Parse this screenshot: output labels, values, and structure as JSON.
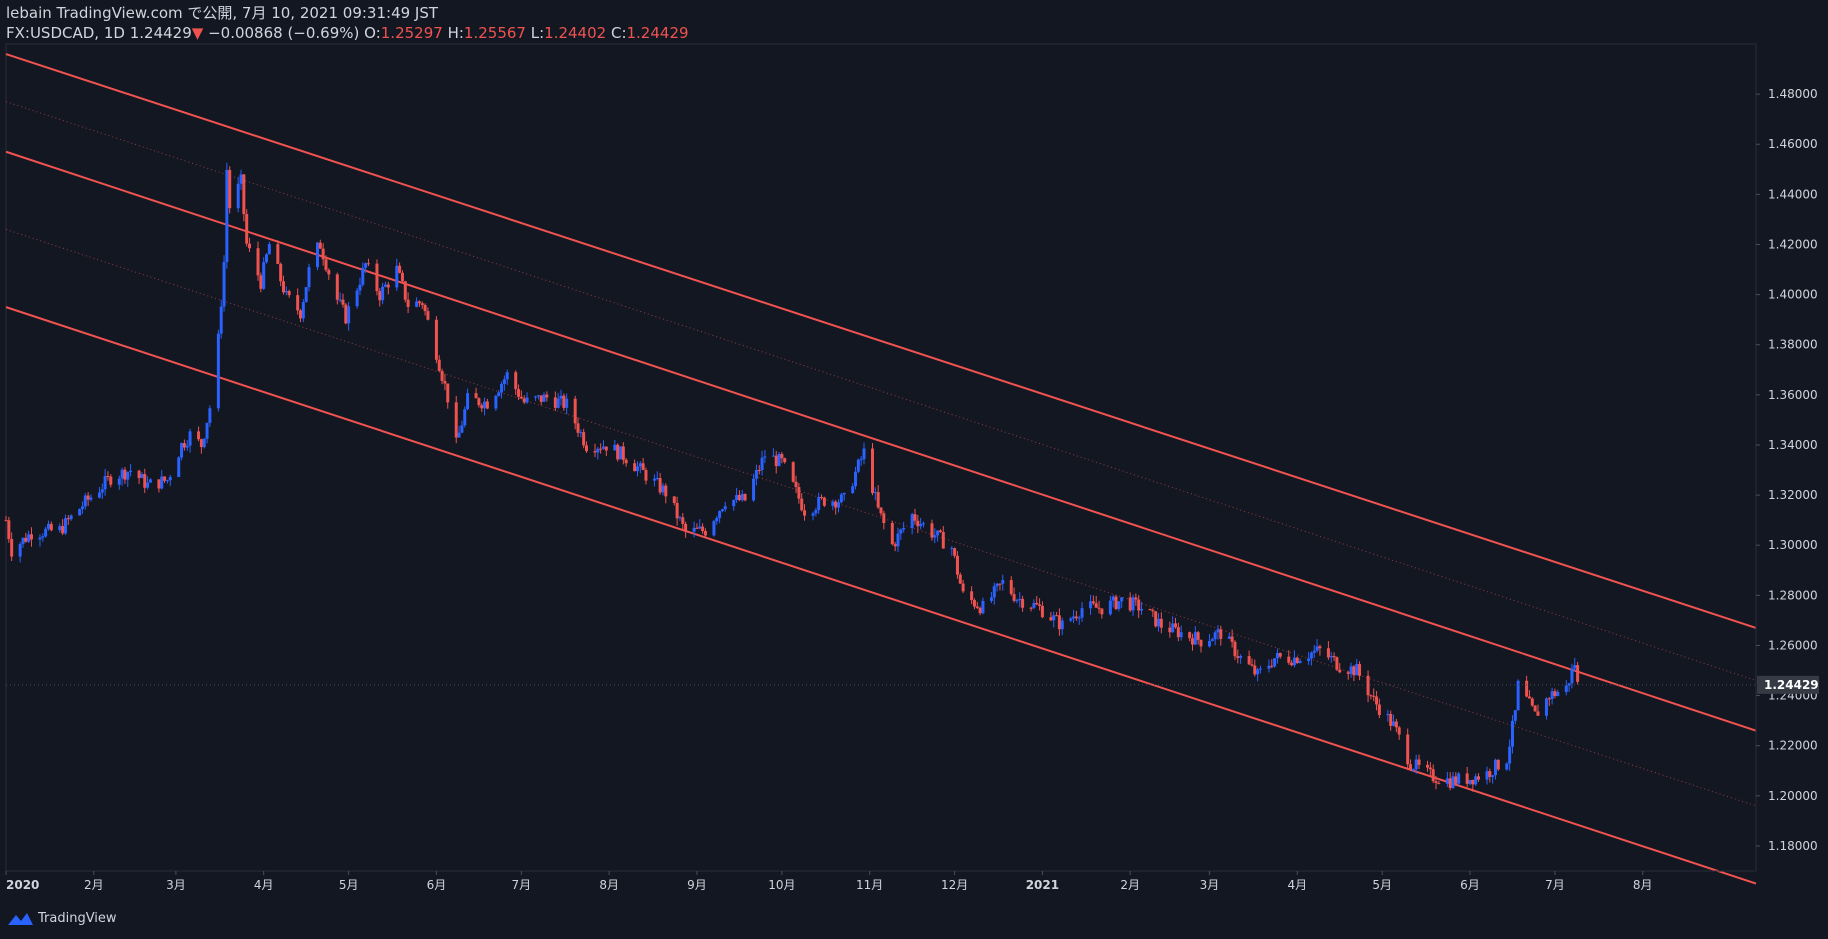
{
  "header": {
    "published": "lebain TradingView.com で公開, 7月 10, 2021 09:31:49 JST",
    "symbol": "FX:USDCAD, 1D",
    "last": "1.24429",
    "arrow": "▼",
    "change": "−0.00868 (−0.69%)",
    "o_label": "O:",
    "o_value": "1.25297",
    "h_label": "H:",
    "h_value": "1.25567",
    "l_label": "L:",
    "l_value": "1.24402",
    "c_label": "C:",
    "c_value": "1.24429"
  },
  "footer": {
    "brand": "TradingView",
    "logo_icon": "tradingview-cloud-icon"
  },
  "colors": {
    "background": "#131722",
    "up": "#2962ff",
    "down": "#ef5350",
    "channel": "#f05350",
    "text": "#d1d4dc",
    "last_price_bg": "#363a45"
  },
  "chart_data": {
    "type": "candlestick",
    "symbol": "FX:USDCAD",
    "interval": "1D",
    "ylim": [
      1.17,
      1.5
    ],
    "y_ticks": [
      "1.18000",
      "1.20000",
      "1.22000",
      "1.24000",
      "1.26000",
      "1.28000",
      "1.30000",
      "1.32000",
      "1.34000",
      "1.36000",
      "1.38000",
      "1.40000",
      "1.42000",
      "1.44000",
      "1.46000",
      "1.48000"
    ],
    "x_range": [
      "2020-01-01",
      "2021-09-10"
    ],
    "x_ticks": [
      {
        "date": "2020-01-01",
        "label": "2020",
        "bold": true
      },
      {
        "date": "2020-02-01",
        "label": "2月"
      },
      {
        "date": "2020-03-01",
        "label": "3月"
      },
      {
        "date": "2020-04-01",
        "label": "4月"
      },
      {
        "date": "2020-05-01",
        "label": "5月"
      },
      {
        "date": "2020-06-01",
        "label": "6月"
      },
      {
        "date": "2020-07-01",
        "label": "7月"
      },
      {
        "date": "2020-08-01",
        "label": "8月"
      },
      {
        "date": "2020-09-01",
        "label": "9月"
      },
      {
        "date": "2020-10-01",
        "label": "10月"
      },
      {
        "date": "2020-11-01",
        "label": "11月"
      },
      {
        "date": "2020-12-01",
        "label": "12月"
      },
      {
        "date": "2021-01-01",
        "label": "2021",
        "bold": true
      },
      {
        "date": "2021-02-01",
        "label": "2月"
      },
      {
        "date": "2021-03-01",
        "label": "3月"
      },
      {
        "date": "2021-04-01",
        "label": "4月"
      },
      {
        "date": "2021-05-01",
        "label": "5月"
      },
      {
        "date": "2021-06-01",
        "label": "6月"
      },
      {
        "date": "2021-07-01",
        "label": "7月"
      },
      {
        "date": "2021-08-01",
        "label": "8月"
      }
    ],
    "last_price": {
      "value": 1.24429,
      "label": "1.24429"
    },
    "path_points": [
      {
        "date": "2020-01-01",
        "close": 1.31
      },
      {
        "date": "2020-01-03",
        "close": 1.298
      },
      {
        "date": "2020-01-10",
        "close": 1.305
      },
      {
        "date": "2020-01-20",
        "close": 1.306
      },
      {
        "date": "2020-01-28",
        "close": 1.316
      },
      {
        "date": "2020-02-07",
        "close": 1.327
      },
      {
        "date": "2020-02-14",
        "close": 1.33
      },
      {
        "date": "2020-02-20",
        "close": 1.324
      },
      {
        "date": "2020-02-27",
        "close": 1.326
      },
      {
        "date": "2020-03-03",
        "close": 1.34
      },
      {
        "date": "2020-03-06",
        "close": 1.344
      },
      {
        "date": "2020-03-10",
        "close": 1.34
      },
      {
        "date": "2020-03-13",
        "close": 1.355
      },
      {
        "date": "2020-03-16",
        "close": 1.382
      },
      {
        "date": "2020-03-18",
        "close": 1.413
      },
      {
        "date": "2020-03-19",
        "close": 1.45
      },
      {
        "date": "2020-03-20",
        "close": 1.435
      },
      {
        "date": "2020-03-24",
        "close": 1.445
      },
      {
        "date": "2020-03-26",
        "close": 1.42
      },
      {
        "date": "2020-03-31",
        "close": 1.405
      },
      {
        "date": "2020-04-03",
        "close": 1.42
      },
      {
        "date": "2020-04-09",
        "close": 1.399
      },
      {
        "date": "2020-04-14",
        "close": 1.393
      },
      {
        "date": "2020-04-18",
        "close": 1.415
      },
      {
        "date": "2020-04-21",
        "close": 1.42
      },
      {
        "date": "2020-04-27",
        "close": 1.398
      },
      {
        "date": "2020-04-30",
        "close": 1.391
      },
      {
        "date": "2020-05-07",
        "close": 1.412
      },
      {
        "date": "2020-05-12",
        "close": 1.4
      },
      {
        "date": "2020-05-18",
        "close": 1.41
      },
      {
        "date": "2020-05-22",
        "close": 1.396
      },
      {
        "date": "2020-05-27",
        "close": 1.397
      },
      {
        "date": "2020-06-01",
        "close": 1.377
      },
      {
        "date": "2020-06-05",
        "close": 1.359
      },
      {
        "date": "2020-06-08",
        "close": 1.34
      },
      {
        "date": "2020-06-12",
        "close": 1.358
      },
      {
        "date": "2020-06-19",
        "close": 1.357
      },
      {
        "date": "2020-06-26",
        "close": 1.368
      },
      {
        "date": "2020-07-02",
        "close": 1.357
      },
      {
        "date": "2020-07-10",
        "close": 1.359
      },
      {
        "date": "2020-07-17",
        "close": 1.356
      },
      {
        "date": "2020-07-24",
        "close": 1.34
      },
      {
        "date": "2020-07-31",
        "close": 1.34
      },
      {
        "date": "2020-08-07",
        "close": 1.335
      },
      {
        "date": "2020-08-14",
        "close": 1.328
      },
      {
        "date": "2020-08-21",
        "close": 1.321
      },
      {
        "date": "2020-08-28",
        "close": 1.305
      },
      {
        "date": "2020-09-04",
        "close": 1.306
      },
      {
        "date": "2020-09-11",
        "close": 1.318
      },
      {
        "date": "2020-09-18",
        "close": 1.318
      },
      {
        "date": "2020-09-25",
        "close": 1.336
      },
      {
        "date": "2020-10-01",
        "close": 1.333
      },
      {
        "date": "2020-10-09",
        "close": 1.314
      },
      {
        "date": "2020-10-16",
        "close": 1.318
      },
      {
        "date": "2020-10-23",
        "close": 1.318
      },
      {
        "date": "2020-10-30",
        "close": 1.337
      },
      {
        "date": "2020-11-04",
        "close": 1.314
      },
      {
        "date": "2020-11-09",
        "close": 1.3
      },
      {
        "date": "2020-11-16",
        "close": 1.312
      },
      {
        "date": "2020-11-23",
        "close": 1.305
      },
      {
        "date": "2020-11-30",
        "close": 1.299
      },
      {
        "date": "2020-12-04",
        "close": 1.28
      },
      {
        "date": "2020-12-11",
        "close": 1.275
      },
      {
        "date": "2020-12-18",
        "close": 1.285
      },
      {
        "date": "2020-12-23",
        "close": 1.279
      },
      {
        "date": "2020-12-31",
        "close": 1.275
      },
      {
        "date": "2021-01-08",
        "close": 1.268
      },
      {
        "date": "2021-01-15",
        "close": 1.275
      },
      {
        "date": "2021-01-22",
        "close": 1.275
      },
      {
        "date": "2021-01-29",
        "close": 1.278
      },
      {
        "date": "2021-02-05",
        "close": 1.275
      },
      {
        "date": "2021-02-12",
        "close": 1.268
      },
      {
        "date": "2021-02-19",
        "close": 1.265
      },
      {
        "date": "2021-02-26",
        "close": 1.262
      },
      {
        "date": "2021-03-05",
        "close": 1.265
      },
      {
        "date": "2021-03-12",
        "close": 1.255
      },
      {
        "date": "2021-03-18",
        "close": 1.248
      },
      {
        "date": "2021-03-24",
        "close": 1.255
      },
      {
        "date": "2021-03-31",
        "close": 1.255
      },
      {
        "date": "2021-04-09",
        "close": 1.258
      },
      {
        "date": "2021-04-16",
        "close": 1.252
      },
      {
        "date": "2021-04-22",
        "close": 1.25
      },
      {
        "date": "2021-04-28",
        "close": 1.238
      },
      {
        "date": "2021-05-05",
        "close": 1.228
      },
      {
        "date": "2021-05-11",
        "close": 1.213
      },
      {
        "date": "2021-05-18",
        "close": 1.208
      },
      {
        "date": "2021-05-25",
        "close": 1.206
      },
      {
        "date": "2021-06-01",
        "close": 1.207
      },
      {
        "date": "2021-06-07",
        "close": 1.209
      },
      {
        "date": "2021-06-14",
        "close": 1.215
      },
      {
        "date": "2021-06-17",
        "close": 1.233
      },
      {
        "date": "2021-06-18",
        "close": 1.244
      },
      {
        "date": "2021-06-24",
        "close": 1.232
      },
      {
        "date": "2021-06-29",
        "close": 1.24
      },
      {
        "date": "2021-07-05",
        "close": 1.243
      },
      {
        "date": "2021-07-08",
        "close": 1.253
      },
      {
        "date": "2021-07-09",
        "close": 1.24429
      }
    ],
    "channel_lines": [
      {
        "name": "upper",
        "start": {
          "date": "2020-01-01",
          "price": 1.496
        },
        "end": {
          "date": "2021-09-10",
          "price": 1.267
        },
        "style": "solid"
      },
      {
        "name": "upper-mid",
        "start": {
          "date": "2020-01-01",
          "price": 1.477
        },
        "end": {
          "date": "2021-09-10",
          "price": 1.246
        },
        "style": "dotted"
      },
      {
        "name": "middle",
        "start": {
          "date": "2020-01-01",
          "price": 1.457
        },
        "end": {
          "date": "2021-09-10",
          "price": 1.226
        },
        "style": "solid"
      },
      {
        "name": "lower-mid",
        "start": {
          "date": "2020-01-01",
          "price": 1.426
        },
        "end": {
          "date": "2021-09-10",
          "price": 1.196
        },
        "style": "dotted"
      },
      {
        "name": "lower",
        "start": {
          "date": "2020-01-01",
          "price": 1.395
        },
        "end": {
          "date": "2021-09-10",
          "price": 1.165
        },
        "style": "solid"
      }
    ]
  }
}
